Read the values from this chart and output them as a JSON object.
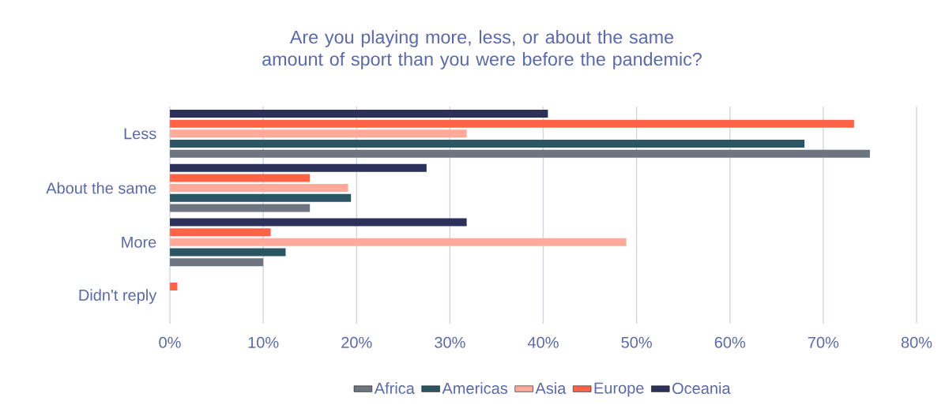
{
  "chart_data": {
    "type": "bar",
    "orientation": "horizontal",
    "title": "Are you playing more, less, or about the same amount of sport than you were before the pandemic?",
    "categories": [
      "Less",
      "About the same",
      "More",
      "Didn't reply"
    ],
    "series": [
      {
        "name": "Africa",
        "color": "#6d7580",
        "values": [
          75,
          15,
          10,
          0
        ]
      },
      {
        "name": "Americas",
        "color": "#2c5564",
        "values": [
          68,
          19.4,
          12.4,
          0
        ]
      },
      {
        "name": "Asia",
        "color": "#ffa99b",
        "values": [
          31.8,
          19.1,
          48.9,
          0
        ]
      },
      {
        "name": "Europe",
        "color": "#ff6347",
        "values": [
          73.3,
          15,
          10.8,
          0.8
        ]
      },
      {
        "name": "Oceania",
        "color": "#2b3158",
        "values": [
          40.5,
          27.5,
          31.8,
          0
        ]
      }
    ],
    "xlim": [
      0,
      80
    ],
    "xticks": [
      {
        "value": 0,
        "label": "0%"
      },
      {
        "value": 10,
        "label": "10%"
      },
      {
        "value": 20,
        "label": "20%"
      },
      {
        "value": 30,
        "label": "30%"
      },
      {
        "value": 40,
        "label": "40%"
      },
      {
        "value": 50,
        "label": "50%"
      },
      {
        "value": 60,
        "label": "60%"
      },
      {
        "value": 70,
        "label": "70%"
      },
      {
        "value": 80,
        "label": "80%"
      }
    ],
    "grid": "x",
    "legend": "bottom"
  }
}
